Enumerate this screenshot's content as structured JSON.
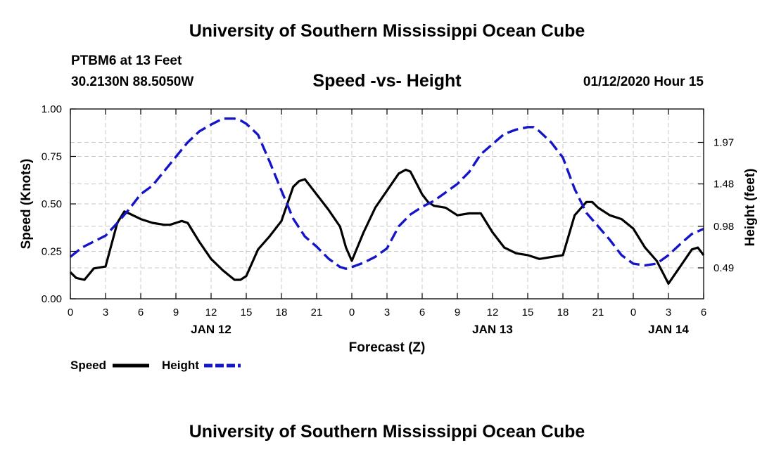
{
  "header": {
    "title": "University of Southern Mississippi Ocean Cube",
    "station": "PTBM6 at 13 Feet",
    "coords": "30.2130N 88.5050W",
    "plot_title": "Speed -vs- Height",
    "date": "01/12/2020 Hour 15"
  },
  "footer": {
    "title": "University of Southern Mississippi Ocean Cube"
  },
  "colors": {
    "speed": "#000000",
    "height": "#1414c8",
    "grid": "#c8c8c8"
  },
  "chart_data": {
    "type": "line",
    "title": "Speed -vs- Height",
    "xlabel": "Forecast (Z)",
    "ylabel": "Speed (Knots)",
    "y2label": "Height (feet)",
    "x_range_hours": [
      0,
      54
    ],
    "ylim": [
      0,
      1.0
    ],
    "y2lim": [
      0.125,
      2.364
    ],
    "x_ticks": [
      {
        "h": 0,
        "label": "0"
      },
      {
        "h": 3,
        "label": "3"
      },
      {
        "h": 6,
        "label": "6"
      },
      {
        "h": 9,
        "label": "9"
      },
      {
        "h": 12,
        "label": "12"
      },
      {
        "h": 15,
        "label": "15"
      },
      {
        "h": 18,
        "label": "18"
      },
      {
        "h": 21,
        "label": "21"
      },
      {
        "h": 24,
        "label": "0"
      },
      {
        "h": 27,
        "label": "3"
      },
      {
        "h": 30,
        "label": "6"
      },
      {
        "h": 33,
        "label": "9"
      },
      {
        "h": 36,
        "label": "12"
      },
      {
        "h": 39,
        "label": "15"
      },
      {
        "h": 42,
        "label": "18"
      },
      {
        "h": 45,
        "label": "21"
      },
      {
        "h": 48,
        "label": "0"
      },
      {
        "h": 51,
        "label": "3"
      },
      {
        "h": 54,
        "label": "6"
      }
    ],
    "date_labels": [
      {
        "h": 12,
        "label": "JAN 12"
      },
      {
        "h": 36,
        "label": "JAN 13"
      },
      {
        "h": 51,
        "label": "JAN 14"
      }
    ],
    "y_ticks": [
      {
        "v": 0.0,
        "label": "0.00"
      },
      {
        "v": 0.25,
        "label": "0.25"
      },
      {
        "v": 0.5,
        "label": "0.50"
      },
      {
        "v": 0.75,
        "label": "0.75"
      },
      {
        "v": 1.0,
        "label": "1.00"
      }
    ],
    "y2_ticks": [
      {
        "v": 0.49,
        "label": "0.49"
      },
      {
        "v": 0.98,
        "label": "0.98"
      },
      {
        "v": 1.48,
        "label": "1.48"
      },
      {
        "v": 1.97,
        "label": "1.97"
      }
    ],
    "series": [
      {
        "name": "Speed",
        "axis": "left",
        "style": "solid",
        "x": [
          0,
          0.5,
          1.2,
          2,
          3,
          4,
          4.6,
          5,
          6,
          7,
          8,
          8.5,
          9,
          9.5,
          10,
          11,
          12,
          13,
          14,
          14.5,
          15,
          16,
          17,
          18,
          19,
          19.5,
          20,
          21,
          22,
          23,
          23.5,
          24,
          25,
          26,
          27,
          28,
          28.6,
          29,
          30,
          30.5,
          31,
          32,
          33,
          34,
          34.5,
          35,
          36,
          37,
          38,
          39,
          40,
          41,
          42,
          43,
          44,
          44.5,
          45,
          46,
          47,
          48,
          49,
          50,
          51,
          52,
          53,
          53.5,
          54
        ],
        "y": [
          0.14,
          0.11,
          0.1,
          0.16,
          0.17,
          0.4,
          0.46,
          0.45,
          0.42,
          0.4,
          0.39,
          0.39,
          0.4,
          0.41,
          0.4,
          0.3,
          0.21,
          0.15,
          0.1,
          0.1,
          0.12,
          0.26,
          0.33,
          0.41,
          0.59,
          0.62,
          0.63,
          0.55,
          0.47,
          0.38,
          0.27,
          0.2,
          0.35,
          0.48,
          0.57,
          0.66,
          0.68,
          0.67,
          0.55,
          0.51,
          0.49,
          0.48,
          0.44,
          0.45,
          0.45,
          0.45,
          0.35,
          0.27,
          0.24,
          0.23,
          0.21,
          0.22,
          0.23,
          0.44,
          0.51,
          0.51,
          0.48,
          0.44,
          0.42,
          0.37,
          0.27,
          0.2,
          0.08,
          0.17,
          0.26,
          0.27,
          0.23
        ]
      },
      {
        "name": "Height",
        "axis": "right",
        "style": "dashed",
        "x": [
          0,
          1,
          2,
          3,
          4,
          5,
          6,
          7,
          8,
          9,
          10,
          11,
          12,
          13,
          14,
          14.5,
          15,
          16,
          17,
          18,
          19,
          20,
          21,
          22,
          23,
          23.5,
          24,
          25,
          26,
          27,
          28,
          29,
          30,
          31,
          32,
          33,
          34,
          35,
          36,
          37,
          38,
          39,
          39.5,
          40,
          41,
          42,
          43,
          44,
          45,
          46,
          47,
          48,
          49,
          50,
          51,
          52,
          53,
          54
        ],
        "y": [
          0.62,
          0.73,
          0.8,
          0.87,
          1.02,
          1.18,
          1.36,
          1.46,
          1.63,
          1.8,
          1.97,
          2.1,
          2.18,
          2.25,
          2.25,
          2.23,
          2.19,
          2.06,
          1.74,
          1.4,
          1.07,
          0.86,
          0.74,
          0.6,
          0.5,
          0.48,
          0.5,
          0.55,
          0.62,
          0.72,
          0.98,
          1.12,
          1.21,
          1.28,
          1.38,
          1.48,
          1.62,
          1.83,
          1.95,
          2.07,
          2.12,
          2.15,
          2.15,
          2.1,
          1.97,
          1.79,
          1.42,
          1.14,
          0.98,
          0.82,
          0.64,
          0.54,
          0.52,
          0.54,
          0.64,
          0.77,
          0.89,
          0.95
        ]
      }
    ],
    "legend": [
      {
        "label": "Speed",
        "style": "solid"
      },
      {
        "label": "Height",
        "style": "dashed"
      }
    ]
  }
}
